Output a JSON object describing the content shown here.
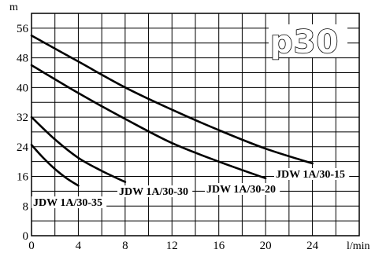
{
  "chart_data": {
    "type": "line",
    "title": "",
    "badge": "p30",
    "xlabel": "l/min",
    "ylabel": "m",
    "xlim": [
      0,
      28
    ],
    "ylim": [
      0,
      60
    ],
    "x_ticks": [
      0,
      4,
      8,
      12,
      16,
      20,
      24
    ],
    "y_ticks": [
      0,
      8,
      16,
      24,
      32,
      40,
      48,
      56
    ],
    "grid": true,
    "series": [
      {
        "name": "JDW 1A/30-15",
        "x": [
          0,
          4,
          8,
          12,
          16,
          20,
          24
        ],
        "y": [
          54,
          47,
          40,
          34,
          28.5,
          23.5,
          19.5
        ]
      },
      {
        "name": "JDW 1A/30-20",
        "x": [
          0,
          4,
          8,
          12,
          16,
          20
        ],
        "y": [
          46,
          38.5,
          31.5,
          25,
          20,
          15.5
        ]
      },
      {
        "name": "JDW 1A/30-30",
        "x": [
          0,
          2,
          4,
          6,
          8
        ],
        "y": [
          32,
          26,
          21,
          17.5,
          14.5
        ]
      },
      {
        "name": "JDW 1A/30-35",
        "x": [
          0,
          1,
          2,
          3,
          4
        ],
        "y": [
          24.5,
          21,
          18,
          15.5,
          13.5
        ]
      }
    ]
  }
}
